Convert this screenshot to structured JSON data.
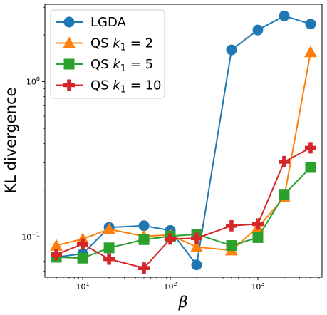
{
  "chart_data": {
    "type": "line",
    "title": "",
    "xlabel": "β",
    "ylabel": "KL divergence",
    "xscale": "log",
    "yscale": "log",
    "xlim": [
      3.7,
      5400
    ],
    "ylim": [
      0.055,
      3.15
    ],
    "x": [
      5,
      10,
      20,
      50,
      100,
      200,
      500,
      1000,
      2000,
      4000
    ],
    "x_ticks": [
      {
        "value": 10,
        "base": "10",
        "exp": "1"
      },
      {
        "value": 100,
        "base": "10",
        "exp": "2"
      },
      {
        "value": 1000,
        "base": "10",
        "exp": "3"
      }
    ],
    "y_ticks": [
      {
        "value": 0.1,
        "base": "10",
        "exp": "−1"
      },
      {
        "value": 1,
        "base": "10",
        "exp": "0"
      }
    ],
    "legend_position": "upper-left",
    "series": [
      {
        "name": "LGDA",
        "legend_parts": [
          {
            "t": "LGDA"
          }
        ],
        "color": "#1f77b4",
        "marker": "circle",
        "values": [
          0.074,
          0.078,
          0.115,
          0.118,
          0.11,
          0.066,
          1.6,
          2.15,
          2.65,
          2.35
        ]
      },
      {
        "name": "QS k1 = 2",
        "legend_parts": [
          {
            "t": "QS "
          },
          {
            "t": "k",
            "style": "italic"
          },
          {
            "t": "1",
            "style": "sub"
          },
          {
            "t": " = 2"
          }
        ],
        "color": "#ff7f0e",
        "marker": "triangle",
        "values": [
          0.088,
          0.097,
          0.112,
          0.101,
          0.103,
          0.086,
          0.082,
          0.115,
          0.18,
          1.55
        ]
      },
      {
        "name": "QS k1 = 5",
        "legend_parts": [
          {
            "t": "QS "
          },
          {
            "t": "k",
            "style": "italic"
          },
          {
            "t": "1",
            "style": "sub"
          },
          {
            "t": " = 5"
          }
        ],
        "color": "#2ca02c",
        "marker": "square",
        "values": [
          0.074,
          0.073,
          0.085,
          0.096,
          0.101,
          0.104,
          0.088,
          0.099,
          0.188,
          0.28
        ]
      },
      {
        "name": "QS k1 = 10",
        "legend_parts": [
          {
            "t": "QS "
          },
          {
            "t": "k",
            "style": "italic"
          },
          {
            "t": "1",
            "style": "sub"
          },
          {
            "t": " = 10"
          }
        ],
        "color": "#d62728",
        "marker": "plus",
        "values": [
          0.077,
          0.09,
          0.072,
          0.063,
          0.097,
          0.098,
          0.118,
          0.121,
          0.305,
          0.375
        ]
      }
    ]
  }
}
